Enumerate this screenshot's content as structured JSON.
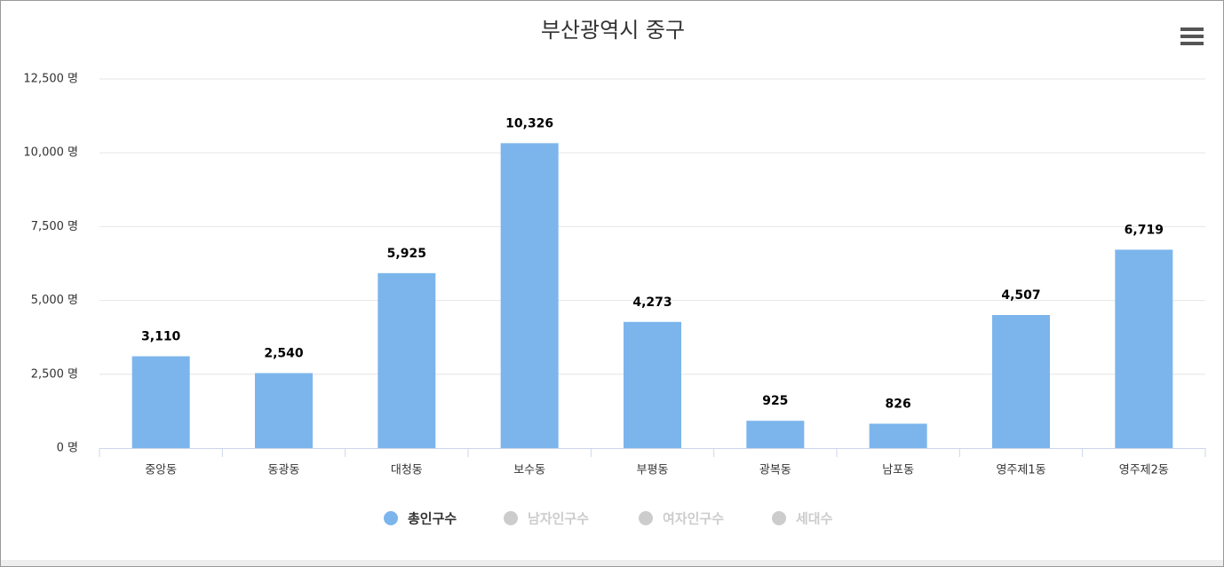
{
  "chart_data": {
    "type": "bar",
    "title": "부산광역시 중구",
    "categories": [
      "중앙동",
      "동광동",
      "대청동",
      "보수동",
      "부평동",
      "광복동",
      "남포동",
      "영주제1동",
      "영주제2동"
    ],
    "series": [
      {
        "name": "총인구수",
        "color": "#7cb5ec",
        "values": [
          3110,
          2540,
          5925,
          10326,
          4273,
          925,
          826,
          4507,
          6719
        ],
        "value_labels": [
          "3,110",
          "2,540",
          "5,925",
          "10,326",
          "4,273",
          "925",
          "826",
          "4,507",
          "6,719"
        ]
      },
      {
        "name": "남자인구수",
        "color": "#cccccc",
        "visible": false
      },
      {
        "name": "여자인구수",
        "color": "#cccccc",
        "visible": false
      },
      {
        "name": "세대수",
        "color": "#cccccc",
        "visible": false
      }
    ],
    "ylim": [
      0,
      12500
    ],
    "yticks": [
      {
        "value": 0,
        "label": "0 명"
      },
      {
        "value": 2500,
        "label": "2,500 명"
      },
      {
        "value": 5000,
        "label": "5,000 명"
      },
      {
        "value": 7500,
        "label": "7,500 명"
      },
      {
        "value": 10000,
        "label": "10,000 명"
      },
      {
        "value": 12500,
        "label": "12,500 명"
      }
    ],
    "grid": true
  }
}
